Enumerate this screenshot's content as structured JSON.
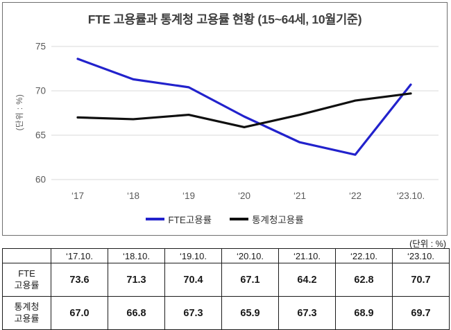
{
  "chart_data": {
    "type": "line",
    "title": "FTE 고용률과 통계청 고용률 현황 (15~64세, 10월기준)",
    "ylabel": "(단위 : %)",
    "xlabel": "",
    "categories": [
      "‘17",
      "‘18",
      "‘19",
      "‘20",
      "‘21",
      "‘22",
      "‘23.10."
    ],
    "y_ticks": [
      75,
      70,
      65,
      60
    ],
    "ylim": [
      60,
      75
    ],
    "grid": "horizontal",
    "legend_position": "bottom",
    "series": [
      {
        "name": "FTE고용률",
        "color": "#2222CC",
        "values": [
          73.6,
          71.3,
          70.4,
          67.1,
          64.2,
          62.8,
          70.7
        ]
      },
      {
        "name": "통계청고용률",
        "color": "#0F0F0F",
        "values": [
          67.0,
          66.8,
          67.3,
          65.9,
          67.3,
          68.9,
          69.7
        ]
      }
    ]
  },
  "unit_label": "(단위 : %)",
  "table": {
    "col_headers": [
      "‘17.10.",
      "‘18.10.",
      "‘19.10.",
      "‘20.10.",
      "‘21.10.",
      "‘22.10.",
      "‘23.10."
    ],
    "rows": [
      {
        "label_lines": [
          "FTE",
          "고용률"
        ],
        "values": [
          "73.6",
          "71.3",
          "70.4",
          "67.1",
          "64.2",
          "62.8",
          "70.7"
        ]
      },
      {
        "label_lines": [
          "통계청",
          "고용률"
        ],
        "values": [
          "67.0",
          "66.8",
          "67.3",
          "65.9",
          "67.3",
          "68.9",
          "69.7"
        ]
      }
    ]
  }
}
